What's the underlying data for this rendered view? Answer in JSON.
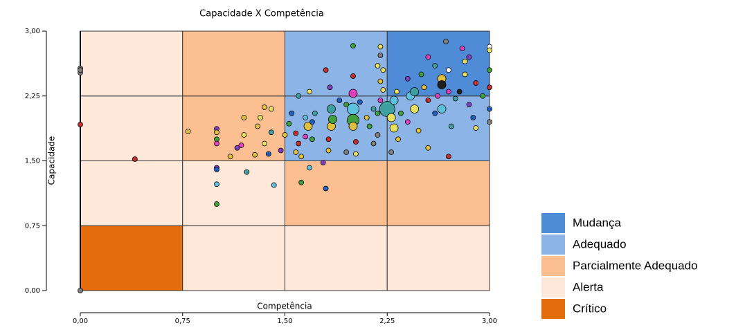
{
  "chart_data": {
    "type": "scatter",
    "title": "Capacidade X Competência",
    "x_label": "Competência",
    "y_label": "Capacidade",
    "xlim": [
      0,
      3
    ],
    "ylim": [
      0,
      3
    ],
    "xticks": [
      {
        "value": 0,
        "label": "0,00"
      },
      {
        "value": 0.75,
        "label": "0,75"
      },
      {
        "value": 1.5,
        "label": "1,50"
      },
      {
        "value": 2.25,
        "label": "2,25"
      },
      {
        "value": 3,
        "label": "3,00"
      }
    ],
    "yticks": [
      {
        "value": 0,
        "label": "0,00"
      },
      {
        "value": 0.75,
        "label": "0,75"
      },
      {
        "value": 1.5,
        "label": "1,50"
      },
      {
        "value": 2.25,
        "label": "2,25"
      },
      {
        "value": 3,
        "label": "3,00"
      }
    ],
    "legend": [
      {
        "name": "Mudança",
        "color": "#4f8bd6"
      },
      {
        "name": "Adequado",
        "color": "#8db4e6"
      },
      {
        "name": "Parcialmente Adequado",
        "color": "#fbbf92"
      },
      {
        "name": "Alerta",
        "color": "#fde8da"
      },
      {
        "name": "Crítico",
        "color": "#e46c0a"
      }
    ],
    "zones": [
      {
        "x": [
          0,
          0.75
        ],
        "y": [
          0,
          0.75
        ],
        "legend": 4
      },
      {
        "x": [
          0.75,
          1.5
        ],
        "y": [
          0,
          0.75
        ],
        "legend": 3
      },
      {
        "x": [
          1.5,
          2.25
        ],
        "y": [
          0,
          0.75
        ],
        "legend": 3
      },
      {
        "x": [
          2.25,
          3
        ],
        "y": [
          0,
          0.75
        ],
        "legend": 3
      },
      {
        "x": [
          0,
          0.75
        ],
        "y": [
          0.75,
          1.5
        ],
        "legend": 3
      },
      {
        "x": [
          0.75,
          1.5
        ],
        "y": [
          0.75,
          1.5
        ],
        "legend": 3
      },
      {
        "x": [
          1.5,
          2.25
        ],
        "y": [
          0.75,
          1.5
        ],
        "legend": 2
      },
      {
        "x": [
          2.25,
          3
        ],
        "y": [
          0.75,
          1.5
        ],
        "legend": 2
      },
      {
        "x": [
          0,
          0.75
        ],
        "y": [
          1.5,
          2.25
        ],
        "legend": 3
      },
      {
        "x": [
          0.75,
          1.5
        ],
        "y": [
          1.5,
          2.25
        ],
        "legend": 2
      },
      {
        "x": [
          1.5,
          2.25
        ],
        "y": [
          1.5,
          2.25
        ],
        "legend": 1
      },
      {
        "x": [
          2.25,
          3
        ],
        "y": [
          1.5,
          2.25
        ],
        "legend": 1
      },
      {
        "x": [
          0,
          0.75
        ],
        "y": [
          2.25,
          3
        ],
        "legend": 3
      },
      {
        "x": [
          0.75,
          1.5
        ],
        "y": [
          2.25,
          3
        ],
        "legend": 2
      },
      {
        "x": [
          1.5,
          2.25
        ],
        "y": [
          2.25,
          3
        ],
        "legend": 1
      },
      {
        "x": [
          2.25,
          3
        ],
        "y": [
          2.25,
          3
        ],
        "legend": 0
      }
    ],
    "points": [
      {
        "x": 0,
        "y": 2.57,
        "size": 1,
        "color": "#808080"
      },
      {
        "x": 0,
        "y": 2.52,
        "size": 1,
        "color": "#808080"
      },
      {
        "x": 0,
        "y": 2.55,
        "size": 1,
        "color": "#808080"
      },
      {
        "x": 0,
        "y": 1.92,
        "size": 1,
        "color": "#c03030"
      },
      {
        "x": 0,
        "y": 0,
        "size": 1,
        "color": "#808080"
      },
      {
        "x": 0.4,
        "y": 1.52,
        "size": 1,
        "color": "#c03030"
      },
      {
        "x": 0.79,
        "y": 1.84,
        "size": 1,
        "color": "#e0c040"
      },
      {
        "x": 1.0,
        "y": 1.87,
        "size": 1,
        "color": "#8040c0"
      },
      {
        "x": 1.0,
        "y": 1.83,
        "size": 1,
        "color": "#e0c040"
      },
      {
        "x": 1.0,
        "y": 1.75,
        "size": 1,
        "color": "#40a040"
      },
      {
        "x": 1.0,
        "y": 1.7,
        "size": 1,
        "color": "#e040c0"
      },
      {
        "x": 1.0,
        "y": 1.42,
        "size": 1,
        "color": "#8040c0"
      },
      {
        "x": 1.0,
        "y": 1.4,
        "size": 1,
        "color": "#2060c0"
      },
      {
        "x": 1.0,
        "y": 1.23,
        "size": 1,
        "color": "#60c0e0"
      },
      {
        "x": 1.0,
        "y": 1.0,
        "size": 1,
        "color": "#40a040"
      },
      {
        "x": 1.2,
        "y": 2.0,
        "size": 1,
        "color": "#e0c040"
      },
      {
        "x": 1.2,
        "y": 1.8,
        "size": 1,
        "color": "#e8e060"
      },
      {
        "x": 1.18,
        "y": 1.68,
        "size": 1,
        "color": "#e040c0"
      },
      {
        "x": 1.15,
        "y": 1.65,
        "size": 1,
        "color": "#8040c0"
      },
      {
        "x": 1.1,
        "y": 1.55,
        "size": 1,
        "color": "#e0c040"
      },
      {
        "x": 1.22,
        "y": 1.37,
        "size": 1,
        "color": "#3fa0a0"
      },
      {
        "x": 1.3,
        "y": 1.9,
        "size": 1,
        "color": "#e0c040"
      },
      {
        "x": 1.32,
        "y": 2.0,
        "size": 1,
        "color": "#e8e060"
      },
      {
        "x": 1.35,
        "y": 2.12,
        "size": 1,
        "color": "#e0c040"
      },
      {
        "x": 1.35,
        "y": 1.7,
        "size": 1,
        "color": "#e8e060"
      },
      {
        "x": 1.28,
        "y": 1.57,
        "size": 1,
        "color": "#e0c040"
      },
      {
        "x": 1.4,
        "y": 1.83,
        "size": 1,
        "color": "#3fa0a0"
      },
      {
        "x": 1.4,
        "y": 2.1,
        "size": 1,
        "color": "#e8e060"
      },
      {
        "x": 1.38,
        "y": 1.58,
        "size": 1,
        "color": "#2060c0"
      },
      {
        "x": 1.42,
        "y": 1.22,
        "size": 1,
        "color": "#60c0e0"
      },
      {
        "x": 1.47,
        "y": 1.62,
        "size": 1,
        "color": "#8040c0"
      },
      {
        "x": 1.5,
        "y": 1.8,
        "size": 1,
        "color": "#e0c040"
      },
      {
        "x": 1.53,
        "y": 1.93,
        "size": 1,
        "color": "#40a040"
      },
      {
        "x": 1.55,
        "y": 2.05,
        "size": 1,
        "color": "#2060c0"
      },
      {
        "x": 1.58,
        "y": 1.6,
        "size": 1,
        "color": "#e0c040"
      },
      {
        "x": 1.6,
        "y": 1.7,
        "size": 1,
        "color": "#c03030"
      },
      {
        "x": 1.62,
        "y": 1.55,
        "size": 1,
        "color": "#e0c040"
      },
      {
        "x": 1.62,
        "y": 1.25,
        "size": 1,
        "color": "#40a040"
      },
      {
        "x": 1.65,
        "y": 2.0,
        "size": 1,
        "color": "#60c0e0"
      },
      {
        "x": 1.68,
        "y": 2.3,
        "size": 1,
        "color": "#e8e060"
      },
      {
        "x": 1.67,
        "y": 1.9,
        "size": 2,
        "color": "#e0c040"
      },
      {
        "x": 1.7,
        "y": 1.95,
        "size": 1,
        "color": "#2060c0"
      },
      {
        "x": 1.7,
        "y": 1.75,
        "size": 1,
        "color": "#40a040"
      },
      {
        "x": 1.72,
        "y": 2.05,
        "size": 1,
        "color": "#3fa0a0"
      },
      {
        "x": 1.68,
        "y": 1.42,
        "size": 1,
        "color": "#60c0e0"
      },
      {
        "x": 1.65,
        "y": 1.78,
        "size": 1,
        "color": "#e040c0"
      },
      {
        "x": 1.58,
        "y": 1.82,
        "size": 1,
        "color": "#c03030"
      },
      {
        "x": 1.6,
        "y": 2.25,
        "size": 1,
        "color": "#3fa0a0"
      },
      {
        "x": 1.8,
        "y": 2.55,
        "size": 1,
        "color": "#c03030"
      },
      {
        "x": 1.78,
        "y": 1.48,
        "size": 1,
        "color": "#8040c0"
      },
      {
        "x": 1.8,
        "y": 1.18,
        "size": 1,
        "color": "#2060c0"
      },
      {
        "x": 1.82,
        "y": 1.62,
        "size": 1,
        "color": "#e0c040"
      },
      {
        "x": 1.82,
        "y": 1.75,
        "size": 1,
        "color": "#c03030"
      },
      {
        "x": 1.84,
        "y": 1.9,
        "size": 2,
        "color": "#e0c040"
      },
      {
        "x": 1.84,
        "y": 2.1,
        "size": 2,
        "color": "#3fa0a0"
      },
      {
        "x": 1.85,
        "y": 1.98,
        "size": 2,
        "color": "#40a040"
      },
      {
        "x": 1.83,
        "y": 2.35,
        "size": 1,
        "color": "#8040c0"
      },
      {
        "x": 1.9,
        "y": 2.2,
        "size": 1,
        "color": "#2060c0"
      },
      {
        "x": 1.95,
        "y": 2.15,
        "size": 1,
        "color": "#40a040"
      },
      {
        "x": 1.95,
        "y": 1.6,
        "size": 1,
        "color": "#808080"
      },
      {
        "x": 2.0,
        "y": 2.1,
        "size": 3,
        "color": "#60c0e0"
      },
      {
        "x": 2.0,
        "y": 1.97,
        "size": 3,
        "color": "#40a040"
      },
      {
        "x": 2.0,
        "y": 1.9,
        "size": 2,
        "color": "#e0c040"
      },
      {
        "x": 2.0,
        "y": 2.28,
        "size": 2,
        "color": "#e040c0"
      },
      {
        "x": 2.0,
        "y": 2.48,
        "size": 1,
        "color": "#c03030"
      },
      {
        "x": 2.0,
        "y": 2.83,
        "size": 1,
        "color": "#40a040"
      },
      {
        "x": 2.02,
        "y": 1.72,
        "size": 1,
        "color": "#c03030"
      },
      {
        "x": 2.02,
        "y": 1.58,
        "size": 1,
        "color": "#e8e060"
      },
      {
        "x": 2.05,
        "y": 2.18,
        "size": 1,
        "color": "#2060c0"
      },
      {
        "x": 2.1,
        "y": 2.0,
        "size": 1,
        "color": "#e0c040"
      },
      {
        "x": 2.12,
        "y": 1.9,
        "size": 1,
        "color": "#40a040"
      },
      {
        "x": 2.15,
        "y": 2.1,
        "size": 1,
        "color": "#3fa0a0"
      },
      {
        "x": 2.18,
        "y": 2.6,
        "size": 1,
        "color": "#e8e060"
      },
      {
        "x": 2.2,
        "y": 2.82,
        "size": 1,
        "color": "#e8e060"
      },
      {
        "x": 2.2,
        "y": 2.72,
        "size": 1,
        "color": "#808080"
      },
      {
        "x": 2.22,
        "y": 2.55,
        "size": 1,
        "color": "#e8e060"
      },
      {
        "x": 2.2,
        "y": 2.42,
        "size": 1,
        "color": "#e0c040"
      },
      {
        "x": 2.22,
        "y": 2.32,
        "size": 1,
        "color": "#e8e060"
      },
      {
        "x": 2.2,
        "y": 2.2,
        "size": 1,
        "color": "#e040c0"
      },
      {
        "x": 2.18,
        "y": 2.05,
        "size": 1,
        "color": "#40a040"
      },
      {
        "x": 2.18,
        "y": 1.8,
        "size": 1,
        "color": "#808080"
      },
      {
        "x": 2.25,
        "y": 2.1,
        "size": 4,
        "color": "#3fa0a0"
      },
      {
        "x": 2.28,
        "y": 2.0,
        "size": 2,
        "color": "#e8e060"
      },
      {
        "x": 2.3,
        "y": 1.88,
        "size": 2,
        "color": "#e8e060"
      },
      {
        "x": 2.3,
        "y": 2.2,
        "size": 2,
        "color": "#60c0e0"
      },
      {
        "x": 2.32,
        "y": 2.3,
        "size": 1,
        "color": "#e8e060"
      },
      {
        "x": 2.35,
        "y": 2.05,
        "size": 1,
        "color": "#40a040"
      },
      {
        "x": 2.33,
        "y": 1.75,
        "size": 1,
        "color": "#e0c040"
      },
      {
        "x": 2.4,
        "y": 1.95,
        "size": 1,
        "color": "#e040c0"
      },
      {
        "x": 2.4,
        "y": 2.45,
        "size": 1,
        "color": "#8040c0"
      },
      {
        "x": 2.42,
        "y": 2.25,
        "size": 2,
        "color": "#60c0e0"
      },
      {
        "x": 2.45,
        "y": 2.1,
        "size": 2,
        "color": "#e8e060"
      },
      {
        "x": 2.45,
        "y": 2.3,
        "size": 2,
        "color": "#3fa0a0"
      },
      {
        "x": 2.48,
        "y": 1.85,
        "size": 1,
        "color": "#e0c040"
      },
      {
        "x": 2.5,
        "y": 2.5,
        "size": 1,
        "color": "#40a040"
      },
      {
        "x": 2.52,
        "y": 2.35,
        "size": 1,
        "color": "#e0c040"
      },
      {
        "x": 2.55,
        "y": 2.2,
        "size": 1,
        "color": "#c03030"
      },
      {
        "x": 2.55,
        "y": 2.7,
        "size": 1,
        "color": "#e040c0"
      },
      {
        "x": 2.6,
        "y": 2.6,
        "size": 1,
        "color": "#3fa0a0"
      },
      {
        "x": 2.6,
        "y": 2.05,
        "size": 1,
        "color": "#2060c0"
      },
      {
        "x": 2.62,
        "y": 2.25,
        "size": 1,
        "color": "#e040c0"
      },
      {
        "x": 2.65,
        "y": 2.45,
        "size": 2,
        "color": "#e0c040"
      },
      {
        "x": 2.65,
        "y": 2.38,
        "size": 2,
        "color": "#202020"
      },
      {
        "x": 2.65,
        "y": 2.1,
        "size": 2,
        "color": "#60c0e0"
      },
      {
        "x": 2.68,
        "y": 2.88,
        "size": 1,
        "color": "#808080"
      },
      {
        "x": 2.7,
        "y": 2.3,
        "size": 1,
        "color": "#e040c0"
      },
      {
        "x": 2.7,
        "y": 2.55,
        "size": 1,
        "color": "#ffffff"
      },
      {
        "x": 2.7,
        "y": 1.55,
        "size": 1,
        "color": "#c03030"
      },
      {
        "x": 2.72,
        "y": 1.9,
        "size": 1,
        "color": "#3fa0a0"
      },
      {
        "x": 2.75,
        "y": 2.22,
        "size": 1,
        "color": "#3fa0a0"
      },
      {
        "x": 2.78,
        "y": 2.3,
        "size": 1,
        "color": "#202020"
      },
      {
        "x": 2.8,
        "y": 2.8,
        "size": 1,
        "color": "#e040c0"
      },
      {
        "x": 2.82,
        "y": 2.65,
        "size": 1,
        "color": "#e8e060"
      },
      {
        "x": 2.82,
        "y": 2.5,
        "size": 1,
        "color": "#e8e060"
      },
      {
        "x": 2.85,
        "y": 2.7,
        "size": 1,
        "color": "#8040c0"
      },
      {
        "x": 2.85,
        "y": 2.15,
        "size": 1,
        "color": "#8040c0"
      },
      {
        "x": 2.88,
        "y": 2.0,
        "size": 1,
        "color": "#2060c0"
      },
      {
        "x": 2.9,
        "y": 2.4,
        "size": 1,
        "color": "#c03030"
      },
      {
        "x": 3.0,
        "y": 2.82,
        "size": 1,
        "color": "#ffffff"
      },
      {
        "x": 3.0,
        "y": 2.78,
        "size": 1,
        "color": "#e8e060"
      },
      {
        "x": 3.0,
        "y": 2.55,
        "size": 1,
        "color": "#40a040"
      },
      {
        "x": 3.0,
        "y": 2.35,
        "size": 1,
        "color": "#c03030"
      },
      {
        "x": 3.0,
        "y": 2.1,
        "size": 1,
        "color": "#2060c0"
      },
      {
        "x": 3.0,
        "y": 1.95,
        "size": 1,
        "color": "#808080"
      },
      {
        "x": 2.95,
        "y": 2.25,
        "size": 1,
        "color": "#40a040"
      },
      {
        "x": 2.9,
        "y": 1.88,
        "size": 1,
        "color": "#e8e060"
      },
      {
        "x": 2.55,
        "y": 1.65,
        "size": 1,
        "color": "#e0c040"
      },
      {
        "x": 2.28,
        "y": 1.6,
        "size": 1,
        "color": "#808080"
      },
      {
        "x": 2.15,
        "y": 1.7,
        "size": 1,
        "color": "#808080"
      }
    ]
  }
}
